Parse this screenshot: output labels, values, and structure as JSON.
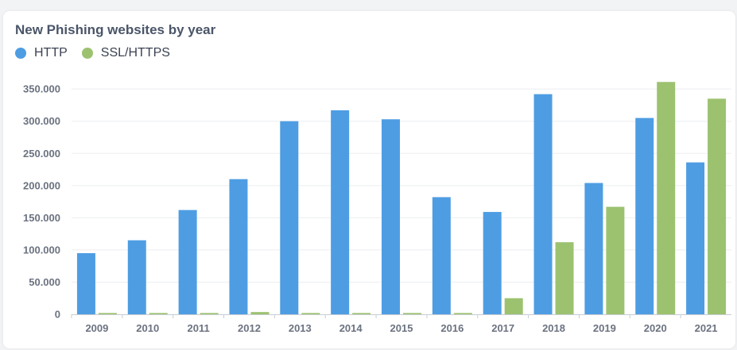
{
  "chart_data": {
    "type": "bar",
    "title": "New Phishing websites by year",
    "categories": [
      "2009",
      "2010",
      "2011",
      "2012",
      "2013",
      "2014",
      "2015",
      "2016",
      "2017",
      "2018",
      "2019",
      "2020",
      "2021"
    ],
    "series": [
      {
        "name": "HTTP",
        "color": "#4e9de3",
        "values": [
          95000,
          115000,
          162000,
          210000,
          300000,
          317000,
          303000,
          182000,
          159000,
          342000,
          204000,
          305000,
          236000
        ]
      },
      {
        "name": "SSL/HTTPS",
        "color": "#9cc270",
        "values": [
          2000,
          2000,
          2000,
          3500,
          2000,
          2000,
          2000,
          2000,
          25000,
          112000,
          167000,
          361000,
          335000
        ]
      }
    ],
    "y_ticks": [
      0,
      50000,
      100000,
      150000,
      200000,
      250000,
      300000,
      350000
    ],
    "y_tick_labels": [
      "0",
      "50.000",
      "100.000",
      "150.000",
      "200.000",
      "250.000",
      "300.000",
      "350.000"
    ],
    "ylim": [
      0,
      365000
    ],
    "grid": true,
    "legend_position": "top-left"
  }
}
